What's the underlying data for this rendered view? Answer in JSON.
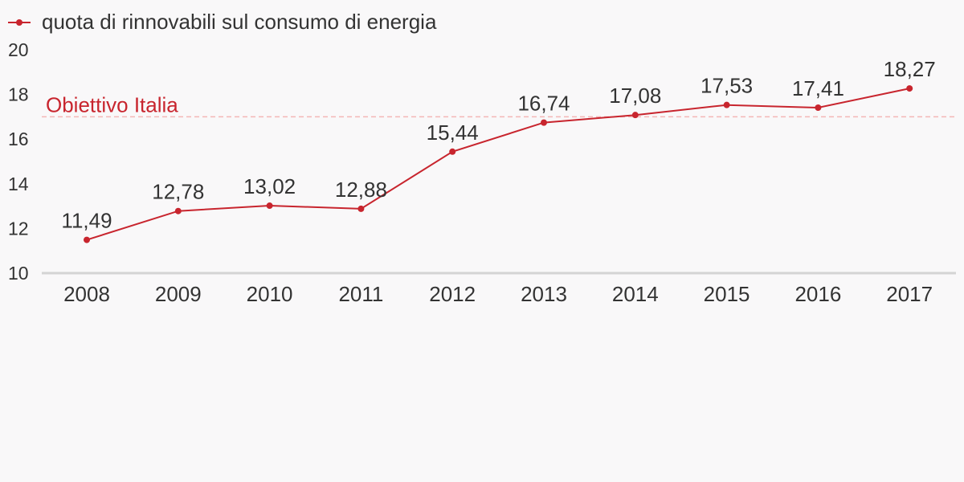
{
  "chart_data": {
    "type": "line",
    "categories": [
      "2008",
      "2009",
      "2010",
      "2011",
      "2012",
      "2013",
      "2014",
      "2015",
      "2016",
      "2017"
    ],
    "series": [
      {
        "name": "quota di rinnovabili sul consumo di energia",
        "values": [
          11.49,
          12.78,
          13.02,
          12.88,
          15.44,
          16.74,
          17.08,
          17.53,
          17.41,
          18.27
        ],
        "labels": [
          "11,49",
          "12,78",
          "13,02",
          "12,88",
          "15,44",
          "16,74",
          "17,08",
          "17,53",
          "17,41",
          "18,27"
        ],
        "color": "#c8252e"
      }
    ],
    "yticks": [
      "10",
      "12",
      "14",
      "16",
      "18",
      "20"
    ],
    "ylim": [
      10,
      20
    ],
    "reference_line": {
      "label": "Obiettivo Italia",
      "value": 17,
      "color": "#c8252e",
      "line_color": "#f4b6b6"
    },
    "legend_position": "top-left",
    "grid": false
  }
}
